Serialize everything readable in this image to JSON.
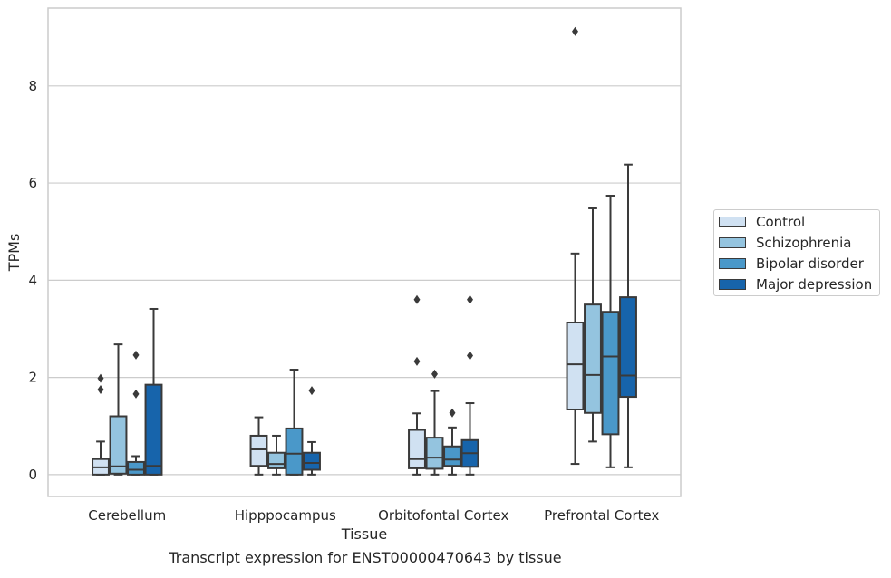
{
  "chart_data": {
    "type": "box",
    "title": "",
    "caption": "Transcript expression for ENST00000470643 by tissue",
    "xlabel": "Tissue",
    "ylabel": "TPMs",
    "ylim": [
      -0.45,
      9.6
    ],
    "yticks": [
      0,
      2,
      4,
      6,
      8
    ],
    "grid": "horizontal",
    "legend_position": "right",
    "categories": [
      "Cerebellum",
      "Hipppocampus",
      "Orbitofontal Cortex",
      "Prefrontal Cortex"
    ],
    "series": [
      {
        "name": "Control",
        "color": "#d0e1f2",
        "boxes": [
          {
            "whislo": 0.0,
            "q1": 0.0,
            "med": 0.15,
            "q3": 0.32,
            "whishi": 0.68,
            "fliers": [
              1.75,
              1.98
            ]
          },
          {
            "whislo": 0.0,
            "q1": 0.18,
            "med": 0.52,
            "q3": 0.8,
            "whishi": 1.18,
            "fliers": []
          },
          {
            "whislo": 0.0,
            "q1": 0.13,
            "med": 0.32,
            "q3": 0.92,
            "whishi": 1.26,
            "fliers": [
              2.33,
              3.6
            ]
          },
          {
            "whislo": 0.22,
            "q1": 1.34,
            "med": 2.27,
            "q3": 3.13,
            "whishi": 4.55,
            "fliers": [
              9.12
            ]
          }
        ]
      },
      {
        "name": "Schizophrenia",
        "color": "#94c4df",
        "boxes": [
          {
            "whislo": 0.0,
            "q1": 0.02,
            "med": 0.17,
            "q3": 1.2,
            "whishi": 2.68,
            "fliers": []
          },
          {
            "whislo": 0.0,
            "q1": 0.13,
            "med": 0.22,
            "q3": 0.45,
            "whishi": 0.8,
            "fliers": []
          },
          {
            "whislo": 0.0,
            "q1": 0.12,
            "med": 0.35,
            "q3": 0.76,
            "whishi": 1.72,
            "fliers": [
              2.07
            ]
          },
          {
            "whislo": 0.68,
            "q1": 1.27,
            "med": 2.05,
            "q3": 3.5,
            "whishi": 5.48,
            "fliers": []
          }
        ]
      },
      {
        "name": "Bipolar disorder",
        "color": "#4a98c9",
        "boxes": [
          {
            "whislo": 0.0,
            "q1": 0.0,
            "med": 0.1,
            "q3": 0.26,
            "whishi": 0.38,
            "fliers": [
              1.66,
              2.46
            ]
          },
          {
            "whislo": 0.0,
            "q1": 0.0,
            "med": 0.43,
            "q3": 0.95,
            "whishi": 2.16,
            "fliers": []
          },
          {
            "whislo": 0.0,
            "q1": 0.18,
            "med": 0.31,
            "q3": 0.58,
            "whishi": 0.97,
            "fliers": [
              1.27
            ]
          },
          {
            "whislo": 0.15,
            "q1": 0.83,
            "med": 2.43,
            "q3": 3.35,
            "whishi": 5.74,
            "fliers": []
          }
        ]
      },
      {
        "name": "Major depression",
        "color": "#1764ab",
        "boxes": [
          {
            "whislo": 0.0,
            "q1": 0.0,
            "med": 0.18,
            "q3": 1.85,
            "whishi": 3.41,
            "fliers": []
          },
          {
            "whislo": 0.0,
            "q1": 0.1,
            "med": 0.24,
            "q3": 0.45,
            "whishi": 0.67,
            "fliers": [
              1.73
            ]
          },
          {
            "whislo": 0.0,
            "q1": 0.16,
            "med": 0.44,
            "q3": 0.71,
            "whishi": 1.47,
            "fliers": [
              2.45,
              3.6
            ]
          },
          {
            "whislo": 0.15,
            "q1": 1.6,
            "med": 2.04,
            "q3": 3.65,
            "whishi": 6.38,
            "fliers": []
          }
        ]
      }
    ]
  }
}
